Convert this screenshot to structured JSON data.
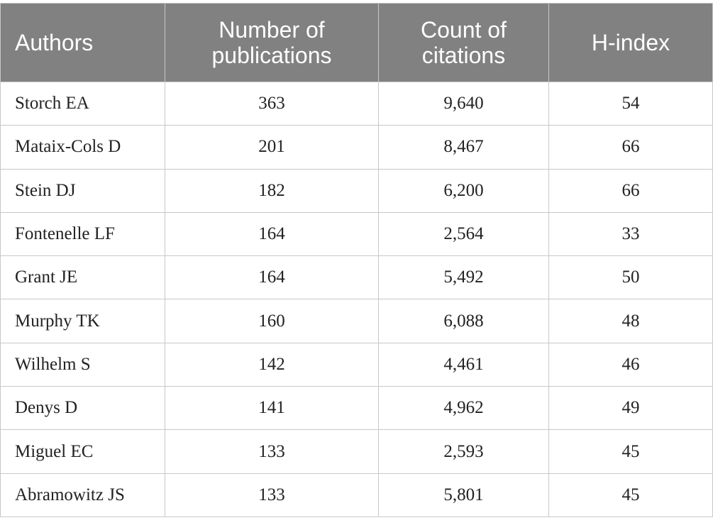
{
  "table": {
    "header": [
      "Authors",
      "Number of publications",
      "Count of citations",
      "H-index"
    ],
    "rows": [
      [
        "Storch EA",
        "363",
        "9,640",
        "54"
      ],
      [
        "Mataix-Cols D",
        "201",
        "8,467",
        "66"
      ],
      [
        "Stein DJ",
        "182",
        "6,200",
        "66"
      ],
      [
        "Fontenelle LF",
        "164",
        "2,564",
        "33"
      ],
      [
        "Grant JE",
        "164",
        "5,492",
        "50"
      ],
      [
        "Murphy TK",
        "160",
        "6,088",
        "48"
      ],
      [
        "Wilhelm S",
        "142",
        "4,461",
        "46"
      ],
      [
        "Denys D",
        "141",
        "4,962",
        "49"
      ],
      [
        "Miguel EC",
        "133",
        "2,593",
        "45"
      ],
      [
        "Abramowitz JS",
        "133",
        "5,801",
        "45"
      ]
    ]
  }
}
